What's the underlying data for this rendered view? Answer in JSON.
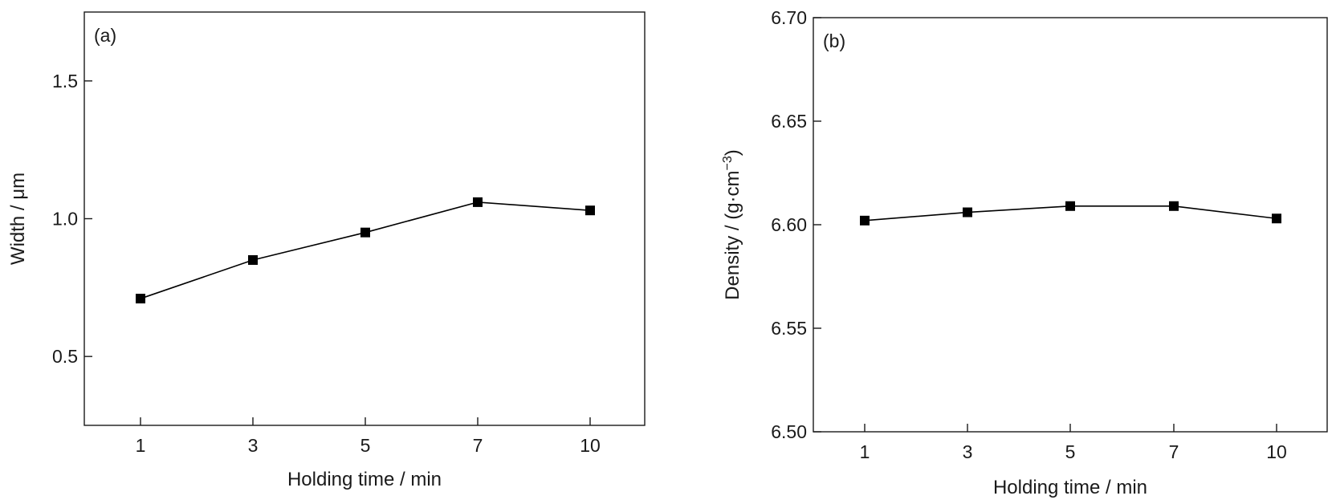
{
  "chart_data": [
    {
      "type": "line",
      "panel_label": "(a)",
      "xlabel": "Holding time / min",
      "ylabel": "Width / μm",
      "categories": [
        "1",
        "3",
        "5",
        "7",
        "10"
      ],
      "series": [
        {
          "values": [
            0.71,
            0.85,
            0.95,
            1.06,
            1.03
          ]
        }
      ],
      "ylim": [
        0.25,
        1.75
      ],
      "yticks": [
        0.5,
        1.0,
        1.5
      ],
      "ytick_labels": [
        "0.5",
        "1.0",
        "1.5"
      ],
      "marker": "square",
      "grid": false
    },
    {
      "type": "line",
      "panel_label": "(b)",
      "xlabel": "Holding time / min",
      "ylabel": "Density / (g·cm",
      "ylabel_superscript": "−3",
      "ylabel_suffix": ")",
      "categories": [
        "1",
        "3",
        "5",
        "7",
        "10"
      ],
      "series": [
        {
          "values": [
            6.602,
            6.606,
            6.609,
            6.609,
            6.603
          ]
        }
      ],
      "ylim": [
        6.5,
        6.7
      ],
      "yticks": [
        6.5,
        6.55,
        6.6,
        6.65,
        6.7
      ],
      "ytick_labels": [
        "6.50",
        "6.55",
        "6.60",
        "6.65",
        "6.70"
      ],
      "marker": "square",
      "grid": false
    }
  ]
}
